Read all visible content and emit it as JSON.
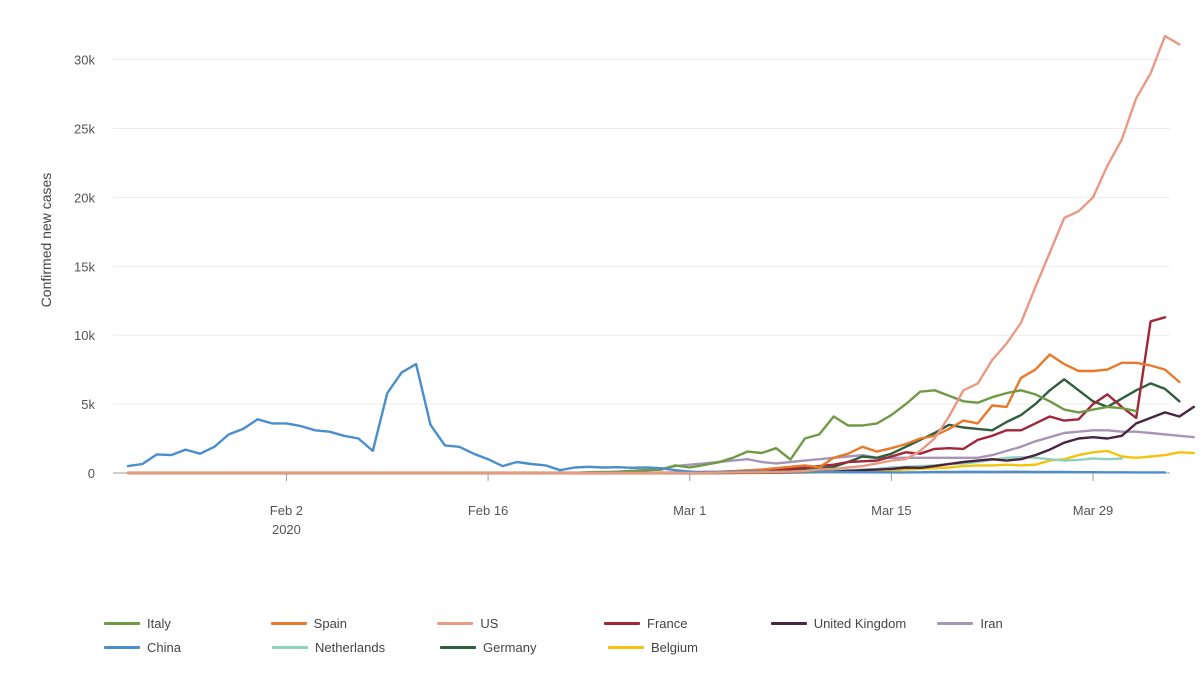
{
  "chart_data": {
    "type": "line",
    "title": "",
    "xlabel": "",
    "ylabel": "Confirmed new cases",
    "ylim": [
      0,
      32000
    ],
    "yticks": [
      0,
      5000,
      10000,
      15000,
      20000,
      25000,
      30000
    ],
    "ytick_labels": [
      "0",
      "5k",
      "10k",
      "15k",
      "20k",
      "25k",
      "30k"
    ],
    "x_start": "2020-01-22",
    "x_end": "2020-04-03",
    "xticks": [
      {
        "date": "2020-02-02",
        "label": "Feb 2",
        "sublabel": "2020"
      },
      {
        "date": "2020-02-16",
        "label": "Feb 16",
        "sublabel": ""
      },
      {
        "date": "2020-03-01",
        "label": "Mar 1",
        "sublabel": ""
      },
      {
        "date": "2020-03-15",
        "label": "Mar 15",
        "sublabel": ""
      },
      {
        "date": "2020-03-29",
        "label": "Mar 29",
        "sublabel": ""
      }
    ],
    "grid": true,
    "legend_position": "bottom",
    "series": [
      {
        "name": "Italy",
        "color": "#6f9a44",
        "start": "2020-02-20",
        "values": [
          0,
          0,
          10,
          60,
          80,
          90,
          150,
          200,
          240,
          550,
          400,
          580,
          780,
          1100,
          1550,
          1450,
          1800,
          980,
          2500,
          2800,
          4100,
          3450,
          3450,
          3600,
          4200,
          5000,
          5900,
          6000,
          5600,
          5200,
          5100,
          5500,
          5800,
          6000,
          5700,
          5200,
          4600,
          4400,
          4600,
          4800,
          4700,
          4500
        ]
      },
      {
        "name": "Spain",
        "color": "#e8782a",
        "start": "2020-02-24",
        "values": [
          0,
          0,
          0,
          0,
          0,
          20,
          40,
          60,
          80,
          120,
          180,
          250,
          350,
          450,
          550,
          420,
          1100,
          1400,
          1900,
          1550,
          1800,
          2100,
          2500,
          2700,
          3200,
          3800,
          3600,
          4900,
          4800,
          6900,
          7500,
          8600,
          7900,
          7400,
          7400,
          7500,
          8000,
          8000,
          7800,
          7500,
          6600
        ]
      },
      {
        "name": "US",
        "color": "#e99a84",
        "start": "2020-02-26",
        "values": [
          0,
          0,
          0,
          0,
          5,
          10,
          20,
          30,
          40,
          60,
          80,
          100,
          150,
          250,
          300,
          400,
          500,
          700,
          900,
          1000,
          1600,
          2500,
          4100,
          6000,
          6500,
          8200,
          9400,
          10900,
          13500,
          16000,
          18500,
          19000,
          20000,
          22300,
          24200,
          27200,
          29000,
          31700,
          31100
        ]
      },
      {
        "name": "France",
        "color": "#a02638",
        "start": "2020-02-25",
        "values": [
          0,
          0,
          0,
          20,
          30,
          50,
          70,
          90,
          130,
          180,
          220,
          280,
          290,
          400,
          500,
          600,
          800,
          850,
          900,
          1200,
          1500,
          1400,
          1750,
          1800,
          1750,
          2400,
          2700,
          3100,
          3100,
          3600,
          4100,
          3800,
          3900,
          5000,
          5700,
          4800,
          4000,
          11000,
          11300
        ]
      },
      {
        "name": "United Kingdom",
        "color": "#4a2341",
        "start": "2020-02-29",
        "values": [
          0,
          0,
          0,
          0,
          10,
          20,
          30,
          40,
          50,
          60,
          80,
          100,
          150,
          200,
          250,
          300,
          400,
          380,
          500,
          650,
          800,
          900,
          1000,
          900,
          1000,
          1300,
          1700,
          2200,
          2500,
          2600,
          2500,
          2700,
          3600,
          4000,
          4400,
          4100,
          4800
        ]
      },
      {
        "name": "Iran",
        "color": "#a794b9",
        "start": "2020-02-19",
        "values": [
          0,
          0,
          10,
          20,
          30,
          40,
          100,
          150,
          200,
          300,
          500,
          600,
          700,
          800,
          900,
          1000,
          800,
          700,
          800,
          900,
          1000,
          1100,
          1200,
          1300,
          1100,
          1100,
          1100,
          1100,
          1100,
          1100,
          1100,
          1100,
          1300,
          1600,
          1900,
          2300,
          2600,
          2900,
          3000,
          3100,
          3100,
          3000,
          3000,
          2900,
          2800,
          2700,
          2600
        ]
      },
      {
        "name": "China",
        "color": "#4a8ecc",
        "start": "2020-01-22",
        "values": [
          500,
          650,
          1350,
          1300,
          1700,
          1400,
          1900,
          2800,
          3200,
          3900,
          3600,
          3600,
          3400,
          3100,
          3000,
          2700,
          2500,
          1600,
          5800,
          7300,
          7900,
          3500,
          2000,
          1900,
          1400,
          1000,
          500,
          800,
          650,
          550,
          200,
          400,
          450,
          400,
          420,
          380,
          400,
          350,
          200,
          100,
          50,
          80,
          80,
          100,
          100,
          90,
          80,
          80,
          70,
          70,
          60,
          50,
          50,
          40,
          40,
          50,
          80,
          80,
          90,
          90,
          80,
          90,
          90,
          80,
          80,
          70,
          60,
          60,
          50,
          50,
          40,
          40,
          40
        ]
      },
      {
        "name": "Netherlands",
        "color": "#8fd1bd",
        "start": "2020-02-27",
        "values": [
          0,
          0,
          0,
          5,
          10,
          20,
          30,
          40,
          50,
          60,
          80,
          100,
          150,
          180,
          200,
          250,
          300,
          400,
          450,
          500,
          550,
          650,
          700,
          800,
          950,
          1100,
          1150,
          1100,
          1000,
          900,
          950,
          1050,
          1000,
          1050
        ]
      },
      {
        "name": "Germany",
        "color": "#2f5e3d",
        "start": "2020-02-26",
        "values": [
          0,
          0,
          0,
          0,
          0,
          10,
          20,
          50,
          80,
          100,
          150,
          200,
          250,
          300,
          450,
          800,
          1200,
          1100,
          1400,
          1900,
          2400,
          2900,
          3500,
          3300,
          3200,
          3100,
          3700,
          4200,
          5000,
          6000,
          6800,
          6000,
          5200,
          4800,
          5400,
          6000,
          6500,
          6100,
          5200
        ]
      },
      {
        "name": "Belgium",
        "color": "#f2c40e",
        "start": "2020-02-29",
        "values": [
          0,
          0,
          0,
          0,
          0,
          0,
          10,
          20,
          30,
          40,
          50,
          60,
          80,
          100,
          150,
          200,
          250,
          300,
          350,
          400,
          500,
          550,
          550,
          600,
          550,
          600,
          900,
          1000,
          1300,
          1500,
          1600,
          1200,
          1100,
          1200,
          1300,
          1500,
          1450
        ]
      }
    ]
  },
  "legend": {
    "rows": [
      [
        "Italy",
        "Spain",
        "US",
        "France",
        "United Kingdom",
        "Iran"
      ],
      [
        "China",
        "Netherlands",
        "Germany",
        "Belgium"
      ]
    ]
  }
}
